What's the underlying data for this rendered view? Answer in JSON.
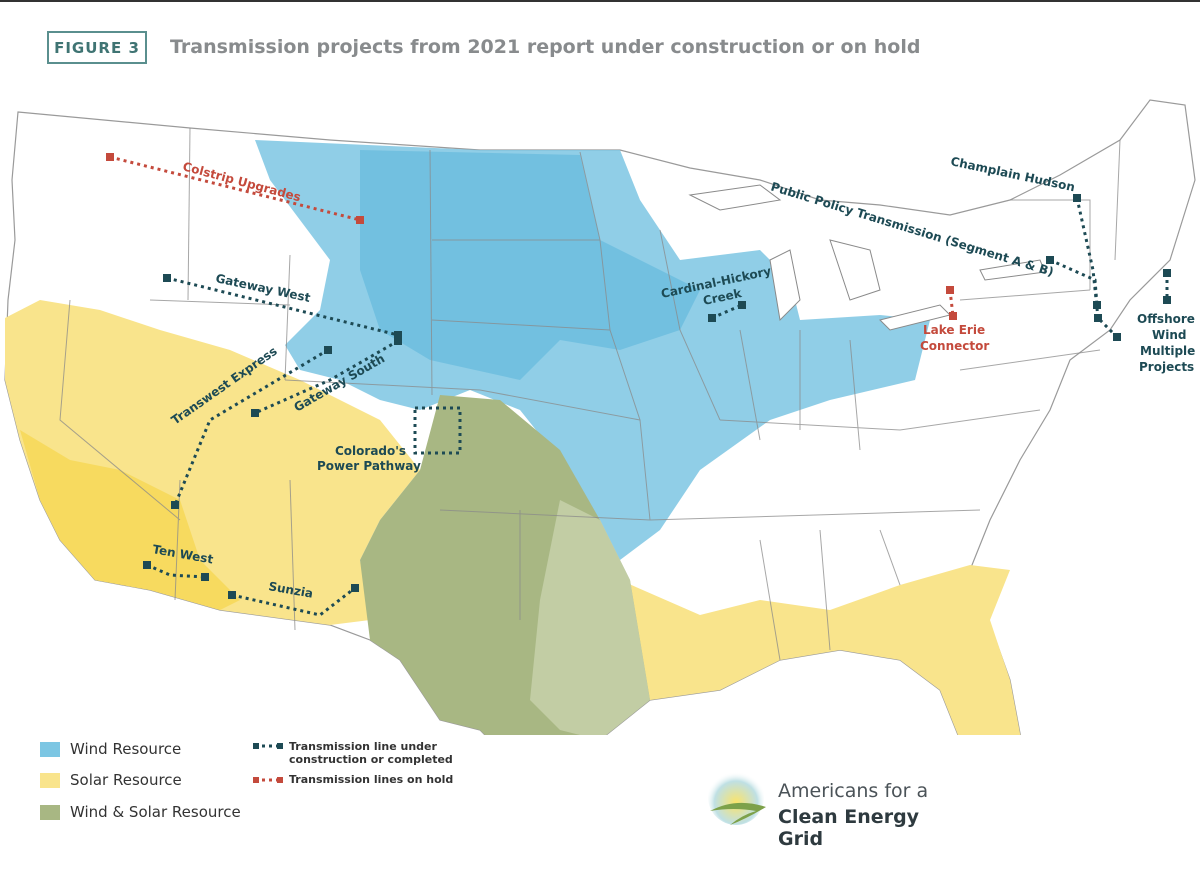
{
  "header": {
    "figure_label": "FIGURE 3",
    "title": "Transmission projects from 2021 report under construction or on hold"
  },
  "colors": {
    "wind": "#7cc6e3",
    "solar": "#f9e48c",
    "wind_solar": "#a8b783",
    "line_active": "#1d4a54",
    "line_hold": "#c44a3c"
  },
  "projects": {
    "colstrip": "Colstrip Upgrades",
    "gateway_west": "Gateway West",
    "transwest": "Transwest Express",
    "gateway_south": "Gateway South",
    "colorado_line1": "Colorado's",
    "colorado_line2": "Power Pathway",
    "ten_west": "Ten West",
    "sunzia": "Sunzia",
    "cardinal_line1": "Cardinal-Hickory",
    "cardinal_line2": "Creek",
    "champlain": "Champlain Hudson",
    "public_policy": "Public Policy Transmission (Segment A & B)",
    "lake_erie_line1": "Lake Erie",
    "lake_erie_line2": "Connector",
    "offshore_line1": "Offshore",
    "offshore_line2": "Wind",
    "offshore_line3": "Multiple",
    "offshore_line4": "Projects"
  },
  "legend": {
    "wind": "Wind Resource",
    "solar": "Solar Resource",
    "wind_solar": "Wind & Solar Resource",
    "active_line1": "Transmission line under",
    "active_line2": "construction or completed",
    "hold": "Transmission lines on hold"
  },
  "logo": {
    "line1": "Americans for a",
    "line2": "Clean Energy Grid"
  }
}
